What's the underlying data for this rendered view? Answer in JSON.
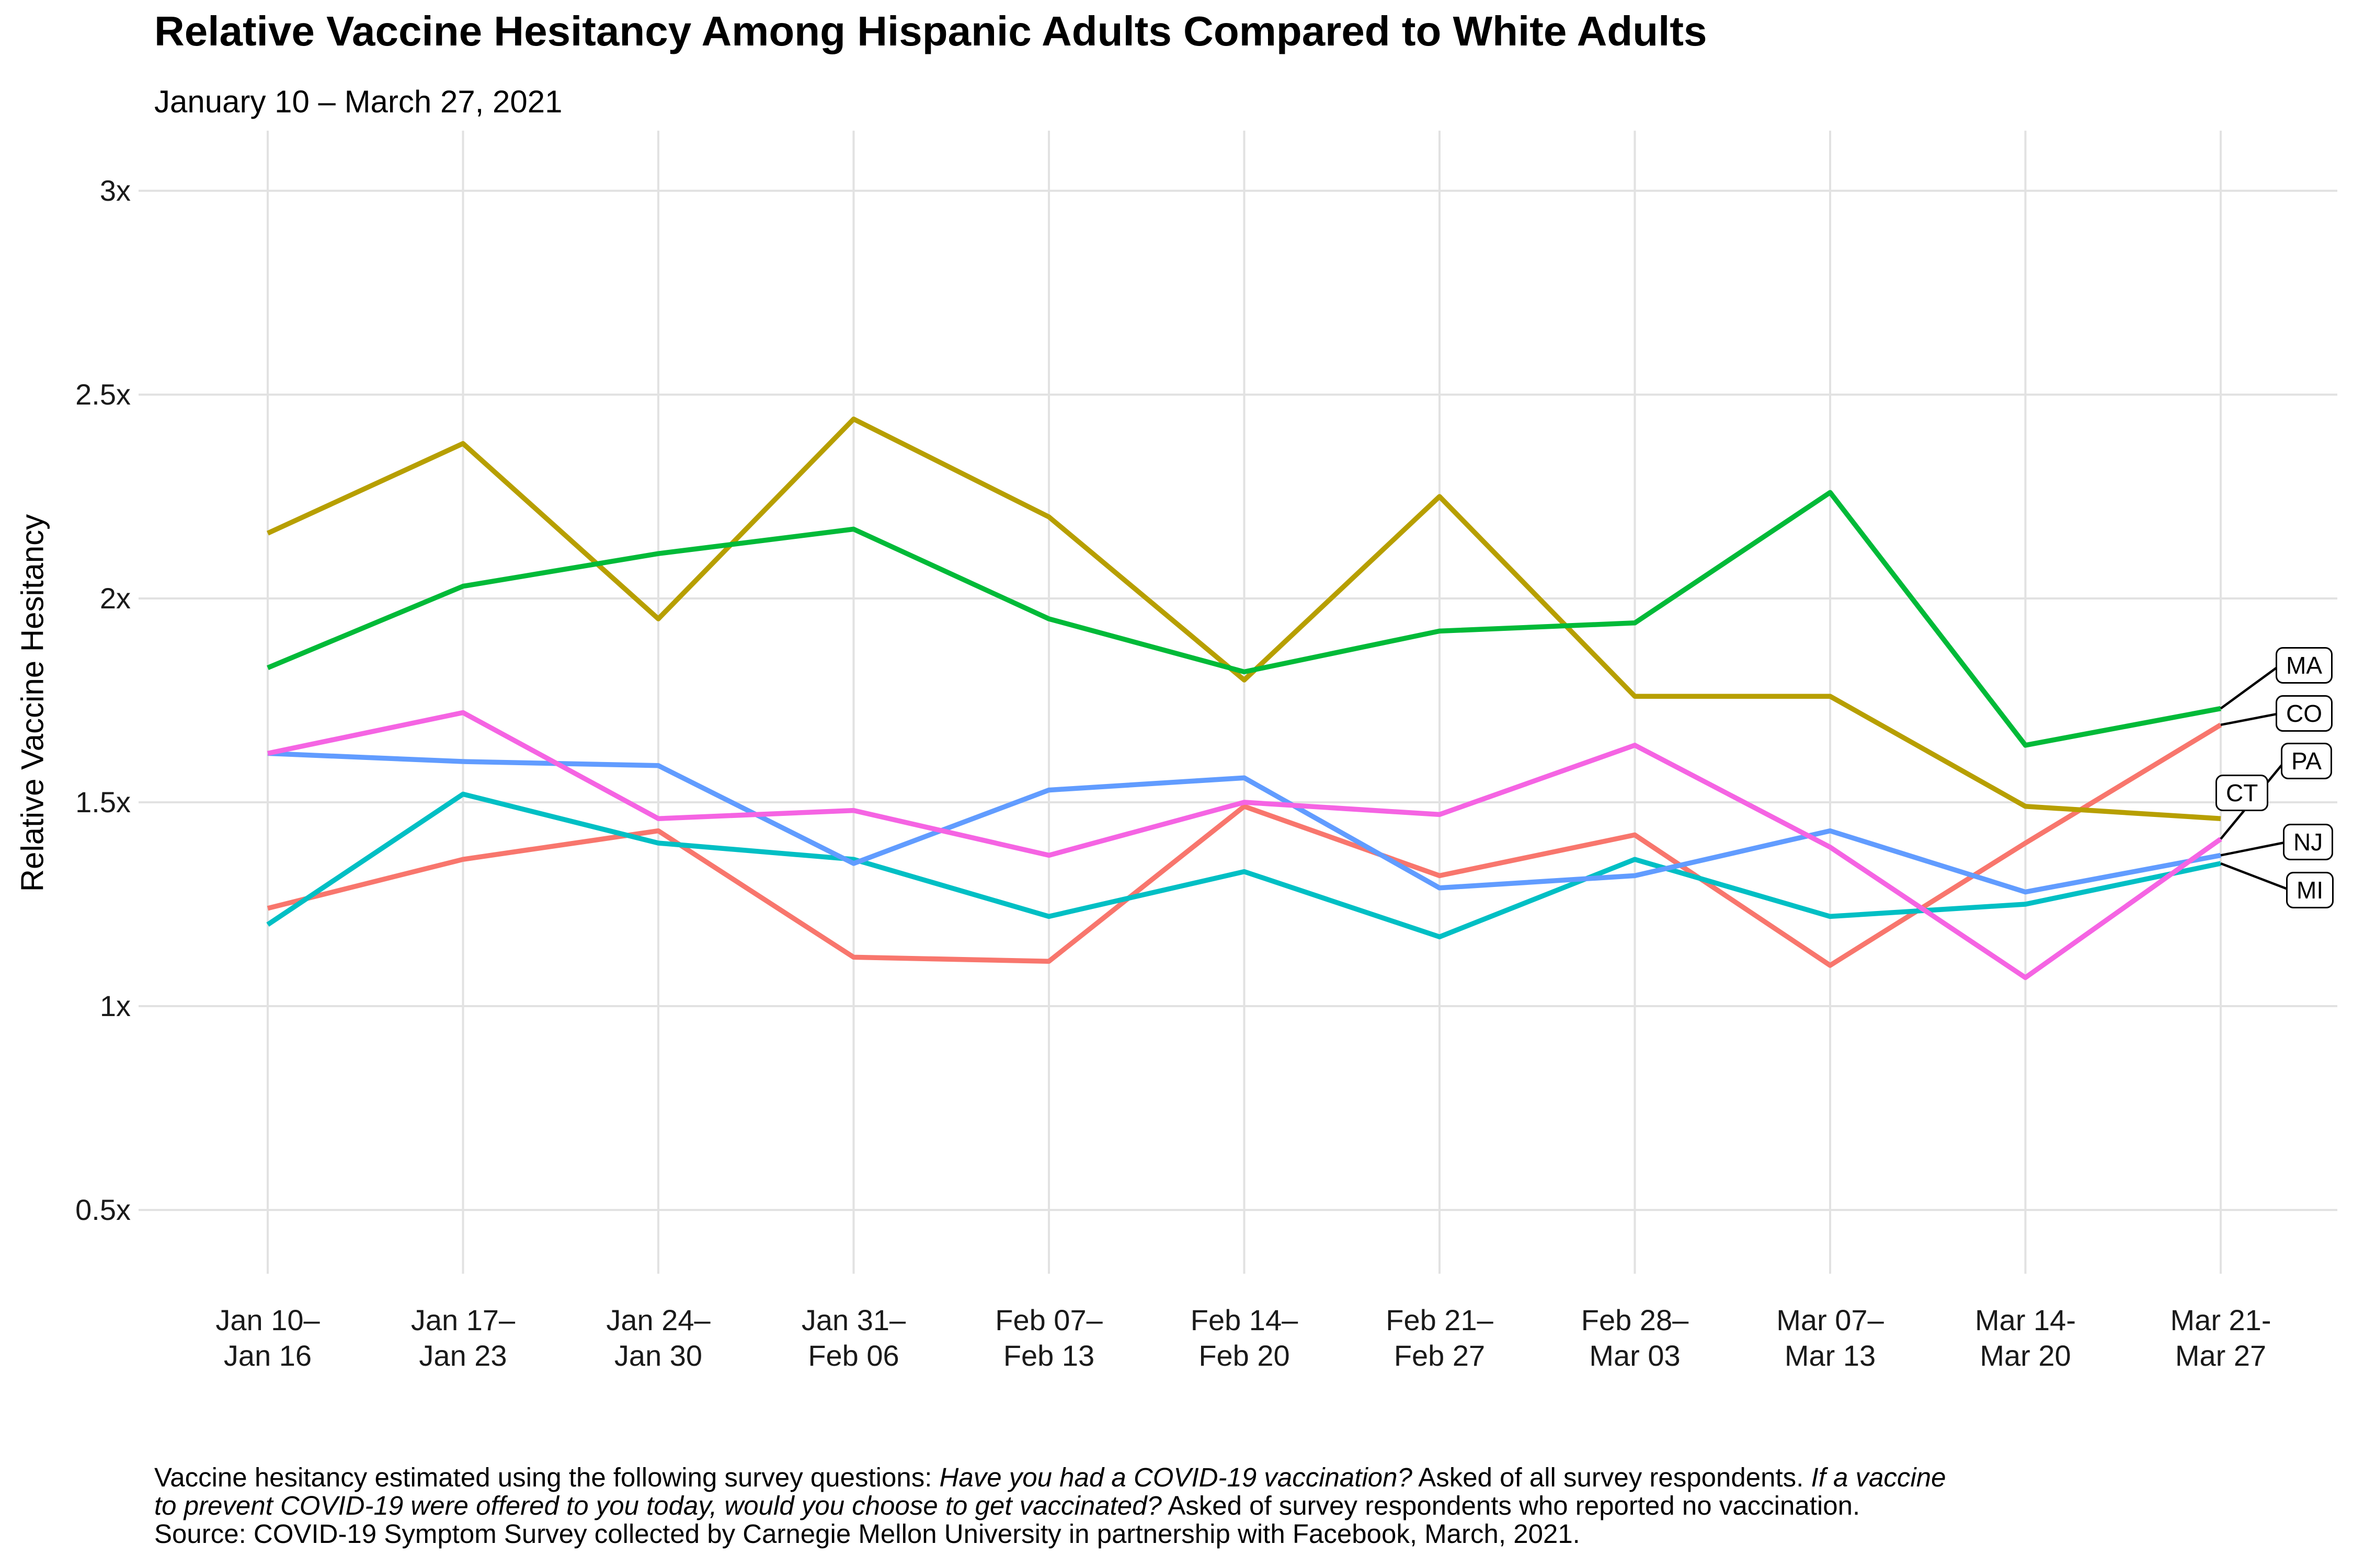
{
  "title": "Relative Vaccine Hesitancy Among Hispanic Adults Compared to White Adults",
  "subtitle": "January 10 – March 27, 2021",
  "y_axis": {
    "title": "Relative Vaccine Hesitancy",
    "ticks": [
      {
        "label": "3x",
        "value": 3.0
      },
      {
        "label": "2.5x",
        "value": 2.5
      },
      {
        "label": "2x",
        "value": 2.0
      },
      {
        "label": "1.5x",
        "value": 1.5
      },
      {
        "label": "1x",
        "value": 1.0
      },
      {
        "label": "0.5x",
        "value": 0.5
      }
    ]
  },
  "x_axis": {
    "ticks": [
      {
        "line1": "Jan 10–",
        "line2": "Jan 16"
      },
      {
        "line1": "Jan 17–",
        "line2": "Jan 23"
      },
      {
        "line1": "Jan 24–",
        "line2": "Jan 30"
      },
      {
        "line1": "Jan 31–",
        "line2": "Feb 06"
      },
      {
        "line1": "Feb 07–",
        "line2": "Feb 13"
      },
      {
        "line1": "Feb 14–",
        "line2": "Feb 20"
      },
      {
        "line1": "Feb 21–",
        "line2": "Feb 27"
      },
      {
        "line1": "Feb 28–",
        "line2": "Mar 03"
      },
      {
        "line1": "Mar 07–",
        "line2": "Mar 13"
      },
      {
        "line1": "Mar 14-",
        "line2": "Mar 20"
      },
      {
        "line1": "Mar 21-",
        "line2": "Mar 27"
      }
    ]
  },
  "chart_data": {
    "type": "line",
    "title": "Relative Vaccine Hesitancy Among Hispanic Adults Compared to White Adults",
    "subtitle": "January 10 – March 27, 2021",
    "xlabel": "",
    "ylabel": "Relative Vaccine Hesitancy",
    "ylim": [
      0.5,
      3.0
    ],
    "grid": true,
    "legend_position": "end-of-line-labels",
    "categories": [
      "Jan 10–Jan 16",
      "Jan 17–Jan 23",
      "Jan 24–Jan 30",
      "Jan 31–Feb 06",
      "Feb 07–Feb 13",
      "Feb 14–Feb 20",
      "Feb 21–Feb 27",
      "Feb 28–Mar 03",
      "Mar 07–Mar 13",
      "Mar 14-Mar 20",
      "Mar 21-Mar 27"
    ],
    "series": [
      {
        "name": "CO",
        "color": "#F8766D",
        "values": [
          1.24,
          1.36,
          1.43,
          1.12,
          1.11,
          1.49,
          1.32,
          1.42,
          1.1,
          1.4,
          1.69
        ]
      },
      {
        "name": "CT",
        "color": "#B79F00",
        "values": [
          2.16,
          2.38,
          1.95,
          2.44,
          2.2,
          1.8,
          2.25,
          1.76,
          1.76,
          1.49,
          1.46
        ]
      },
      {
        "name": "MA",
        "color": "#00BA38",
        "values": [
          1.83,
          2.03,
          2.11,
          2.17,
          1.95,
          1.82,
          1.92,
          1.94,
          2.26,
          1.64,
          1.73
        ]
      },
      {
        "name": "MI",
        "color": "#00BFC4",
        "values": [
          1.2,
          1.52,
          1.4,
          1.36,
          1.22,
          1.33,
          1.17,
          1.36,
          1.22,
          1.25,
          1.35
        ]
      },
      {
        "name": "NJ",
        "color": "#619CFF",
        "values": [
          1.62,
          1.6,
          1.59,
          1.35,
          1.53,
          1.56,
          1.29,
          1.32,
          1.43,
          1.28,
          1.37
        ]
      },
      {
        "name": "PA",
        "color": "#F564E3",
        "values": [
          1.62,
          1.72,
          1.46,
          1.48,
          1.37,
          1.5,
          1.47,
          1.64,
          1.39,
          1.07,
          1.41
        ]
      }
    ],
    "colors": {
      "grid": "#E2E2E2",
      "leader": "#000000",
      "text": "#000000"
    }
  },
  "footer": {
    "lines": [
      [
        {
          "text": "Vaccine hesitancy estimated using the following survey questions: ",
          "italic": false
        },
        {
          "text": "Have you had a COVID-19 vaccination?",
          "italic": true
        },
        {
          "text": " Asked of all survey respondents. ",
          "italic": false
        },
        {
          "text": "If a vaccine",
          "italic": true
        }
      ],
      [
        {
          "text": "to prevent COVID-19 were offered to you today, would you choose to get vaccinated?",
          "italic": true
        },
        {
          "text": " Asked of survey respondents who reported no vaccination.",
          "italic": false
        }
      ],
      [
        {
          "text": "Source: COVID-19 Symptom Survey collected by Carnegie Mellon University in partnership with Facebook, March, 2021.",
          "italic": false
        }
      ]
    ]
  }
}
